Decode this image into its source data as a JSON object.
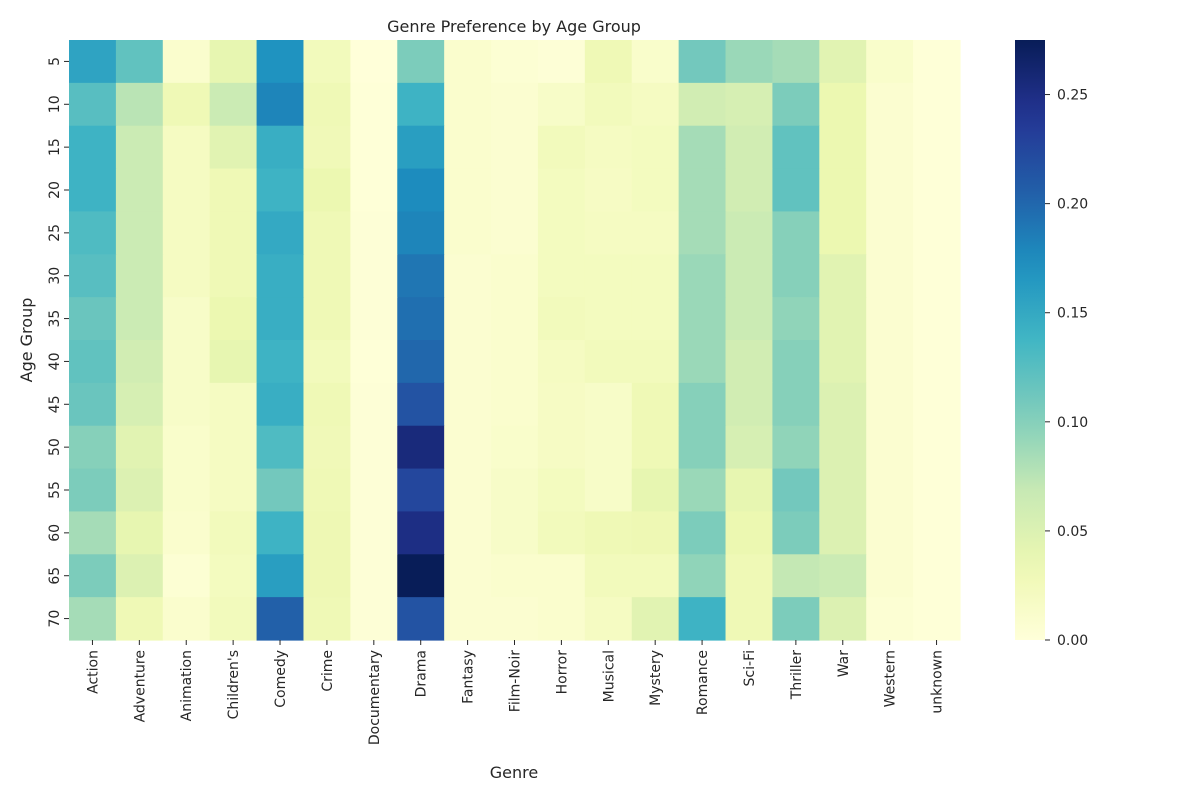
{
  "chart_data": {
    "type": "heatmap",
    "title": "Genre Preference by Age Group",
    "xlabel": "Genre",
    "ylabel": "Age Group",
    "x_categories": [
      "Action",
      "Adventure",
      "Animation",
      "Children's",
      "Comedy",
      "Crime",
      "Documentary",
      "Drama",
      "Fantasy",
      "Film-Noir",
      "Horror",
      "Musical",
      "Mystery",
      "Romance",
      "Sci-Fi",
      "Thriller",
      "War",
      "Western",
      "unknown"
    ],
    "y_categories": [
      "5",
      "10",
      "15",
      "20",
      "25",
      "30",
      "35",
      "40",
      "45",
      "50",
      "55",
      "60",
      "65",
      "70"
    ],
    "values": [
      [
        0.155,
        0.12,
        0.01,
        0.04,
        0.17,
        0.025,
        0.0,
        0.105,
        0.01,
        0.005,
        0.003,
        0.03,
        0.012,
        0.11,
        0.09,
        0.085,
        0.045,
        0.012,
        0.002
      ],
      [
        0.125,
        0.075,
        0.03,
        0.065,
        0.18,
        0.03,
        0.002,
        0.14,
        0.01,
        0.008,
        0.015,
        0.025,
        0.02,
        0.06,
        0.055,
        0.105,
        0.035,
        0.008,
        0.002
      ],
      [
        0.14,
        0.065,
        0.02,
        0.045,
        0.145,
        0.028,
        0.002,
        0.16,
        0.01,
        0.008,
        0.025,
        0.02,
        0.022,
        0.085,
        0.06,
        0.12,
        0.035,
        0.008,
        0.002
      ],
      [
        0.14,
        0.065,
        0.02,
        0.03,
        0.14,
        0.035,
        0.002,
        0.175,
        0.01,
        0.008,
        0.022,
        0.018,
        0.022,
        0.085,
        0.06,
        0.12,
        0.035,
        0.008,
        0.002
      ],
      [
        0.13,
        0.065,
        0.02,
        0.03,
        0.15,
        0.03,
        0.003,
        0.18,
        0.01,
        0.008,
        0.022,
        0.02,
        0.02,
        0.085,
        0.065,
        0.1,
        0.035,
        0.008,
        0.002
      ],
      [
        0.125,
        0.065,
        0.02,
        0.03,
        0.145,
        0.03,
        0.003,
        0.19,
        0.008,
        0.01,
        0.022,
        0.022,
        0.022,
        0.09,
        0.065,
        0.1,
        0.045,
        0.008,
        0.002
      ],
      [
        0.115,
        0.065,
        0.015,
        0.035,
        0.145,
        0.03,
        0.003,
        0.195,
        0.008,
        0.01,
        0.025,
        0.022,
        0.022,
        0.09,
        0.065,
        0.095,
        0.045,
        0.008,
        0.002
      ],
      [
        0.12,
        0.06,
        0.015,
        0.04,
        0.14,
        0.025,
        0.002,
        0.2,
        0.008,
        0.01,
        0.02,
        0.025,
        0.025,
        0.09,
        0.06,
        0.1,
        0.045,
        0.008,
        0.002
      ],
      [
        0.115,
        0.055,
        0.015,
        0.02,
        0.145,
        0.03,
        0.003,
        0.215,
        0.008,
        0.01,
        0.018,
        0.015,
        0.03,
        0.1,
        0.06,
        0.1,
        0.05,
        0.008,
        0.002
      ],
      [
        0.1,
        0.045,
        0.012,
        0.02,
        0.13,
        0.028,
        0.003,
        0.255,
        0.008,
        0.012,
        0.018,
        0.015,
        0.03,
        0.1,
        0.055,
        0.095,
        0.05,
        0.008,
        0.002
      ],
      [
        0.105,
        0.05,
        0.012,
        0.02,
        0.11,
        0.03,
        0.003,
        0.225,
        0.008,
        0.015,
        0.022,
        0.015,
        0.04,
        0.09,
        0.04,
        0.11,
        0.05,
        0.008,
        0.002
      ],
      [
        0.085,
        0.04,
        0.01,
        0.025,
        0.14,
        0.032,
        0.003,
        0.25,
        0.008,
        0.015,
        0.025,
        0.03,
        0.032,
        0.105,
        0.035,
        0.105,
        0.05,
        0.008,
        0.002
      ],
      [
        0.105,
        0.05,
        0.005,
        0.022,
        0.16,
        0.032,
        0.003,
        0.275,
        0.008,
        0.01,
        0.01,
        0.025,
        0.025,
        0.095,
        0.03,
        0.07,
        0.065,
        0.008,
        0.002
      ],
      [
        0.085,
        0.03,
        0.01,
        0.025,
        0.205,
        0.03,
        0.003,
        0.215,
        0.008,
        0.008,
        0.01,
        0.02,
        0.045,
        0.14,
        0.03,
        0.105,
        0.05,
        0.005,
        0.002
      ]
    ],
    "vmin": 0.0,
    "vmax": 0.275,
    "colormap": "YlGnBu",
    "colorbar_ticks": [
      "0.00",
      "0.05",
      "0.10",
      "0.15",
      "0.20",
      "0.25"
    ],
    "colorbar_tick_values": [
      0.0,
      0.05,
      0.1,
      0.15,
      0.2,
      0.25
    ],
    "grid": false
  }
}
